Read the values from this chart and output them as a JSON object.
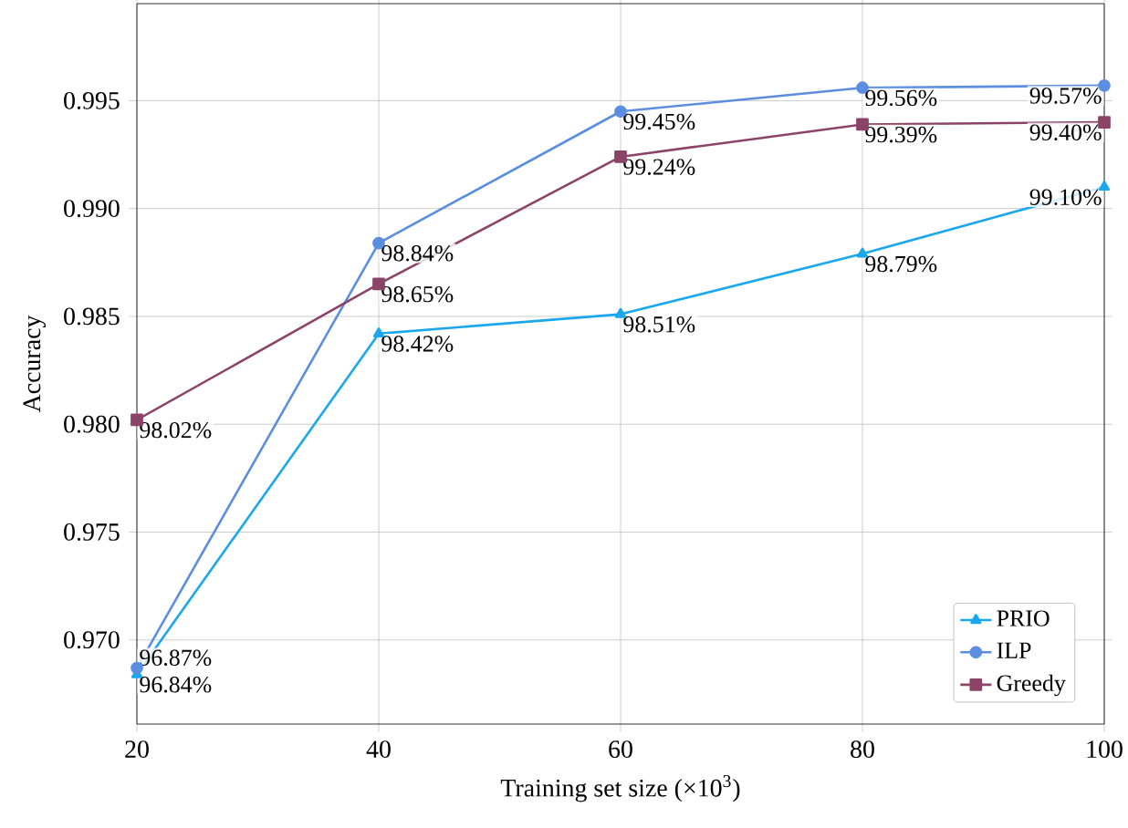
{
  "chart_data": {
    "type": "line",
    "xlabel": "Training set size (×10$^{3}$)",
    "ylabel": "Accuracy",
    "x": [
      20,
      40,
      60,
      80,
      100
    ],
    "xlim": [
      20,
      100
    ],
    "xticks": [
      20,
      40,
      60,
      80,
      100
    ],
    "ylim": [
      0.9661,
      0.9995
    ],
    "yticks": [
      {
        "value": 0.97,
        "label": "0.970"
      },
      {
        "value": 0.975,
        "label": "0.975"
      },
      {
        "value": 0.98,
        "label": "0.980"
      },
      {
        "value": 0.985,
        "label": "0.985"
      },
      {
        "value": 0.99,
        "label": "0.990"
      },
      {
        "value": 0.995,
        "label": "0.995"
      }
    ],
    "grid": true,
    "legend": "bottom right",
    "line_style": "solid",
    "series": [
      {
        "name": "PRIO",
        "color": "#1aa7ec",
        "marker": "triangle",
        "values": [
          0.9684,
          0.9842,
          0.9851,
          0.9879,
          0.991
        ],
        "value_labels": [
          "96.84%",
          "98.42%",
          "98.51%",
          "98.79%",
          "99.10%"
        ]
      },
      {
        "name": "ILP",
        "color": "#5b8ee0",
        "marker": "circle",
        "values": [
          0.9687,
          0.9884,
          0.9945,
          0.9956,
          0.9957
        ],
        "value_labels": [
          "96.87%",
          "98.84%",
          "99.45%",
          "99.56%",
          "99.57%"
        ]
      },
      {
        "name": "Greedy",
        "color": "#8b4468",
        "marker": "square",
        "values": [
          0.9802,
          0.9865,
          0.9924,
          0.9939,
          0.994
        ],
        "value_labels": [
          "98.02%",
          "98.65%",
          "99.24%",
          "99.39%",
          "99.40%"
        ]
      }
    ]
  }
}
